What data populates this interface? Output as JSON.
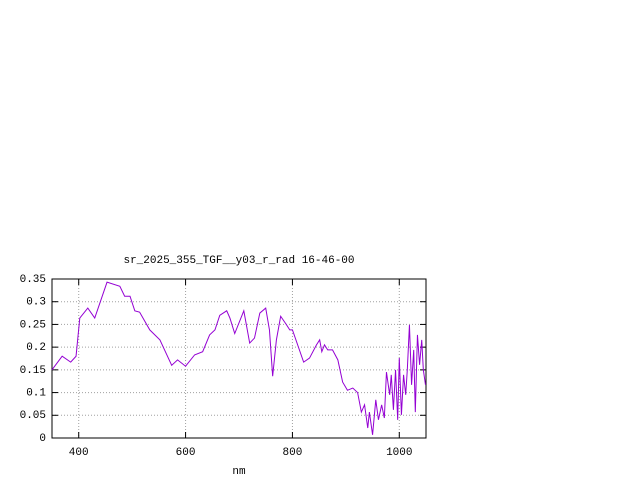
{
  "chart_data": {
    "type": "line",
    "title": "sr_2025_355_TGF__y03_r_rad 16-46-00",
    "x_label": "nm",
    "x": [
      350,
      369,
      385,
      395,
      402,
      417,
      430,
      453,
      477,
      486,
      496,
      505,
      514,
      533,
      552,
      574,
      585,
      600,
      617,
      632,
      645,
      655,
      664,
      677,
      683,
      692,
      709,
      720,
      729,
      739,
      750,
      757,
      763,
      770,
      778,
      789,
      795,
      800,
      821,
      832,
      845,
      851,
      855,
      860,
      866,
      875,
      885,
      894,
      903,
      913,
      922,
      929,
      935,
      941,
      944,
      950,
      956,
      961,
      967,
      972,
      976,
      982,
      985,
      989,
      993,
      997,
      1000,
      1004,
      1008,
      1012,
      1015,
      1019,
      1023,
      1027,
      1030,
      1034,
      1038,
      1042,
      1045,
      1049
    ],
    "series": [
      {
        "name": "sr_2025_355_TGF__y03_r_rad",
        "color": "#9400d3",
        "values": [
          0.15,
          0.18,
          0.167,
          0.18,
          0.264,
          0.286,
          0.264,
          0.343,
          0.334,
          0.312,
          0.312,
          0.28,
          0.277,
          0.238,
          0.216,
          0.16,
          0.172,
          0.158,
          0.183,
          0.19,
          0.227,
          0.238,
          0.27,
          0.28,
          0.264,
          0.23,
          0.28,
          0.209,
          0.22,
          0.275,
          0.286,
          0.238,
          0.136,
          0.216,
          0.268,
          0.249,
          0.238,
          0.238,
          0.167,
          0.176,
          0.205,
          0.216,
          0.19,
          0.205,
          0.194,
          0.194,
          0.172,
          0.123,
          0.105,
          0.11,
          0.1,
          0.057,
          0.073,
          0.022,
          0.057,
          0.007,
          0.084,
          0.04,
          0.073,
          0.044,
          0.145,
          0.095,
          0.139,
          0.062,
          0.15,
          0.04,
          0.176,
          0.051,
          0.139,
          0.095,
          0.15,
          0.249,
          0.117,
          0.194,
          0.057,
          0.227,
          0.161,
          0.216,
          0.15,
          0.117
        ]
      }
    ],
    "xlim": [
      350,
      1050
    ],
    "xticks": [
      400,
      600,
      800,
      1000
    ],
    "ylim": [
      0,
      0.35
    ],
    "yticks": [
      0,
      0.05,
      0.1,
      0.15,
      0.2,
      0.25,
      0.3,
      0.35
    ],
    "grid": true
  }
}
